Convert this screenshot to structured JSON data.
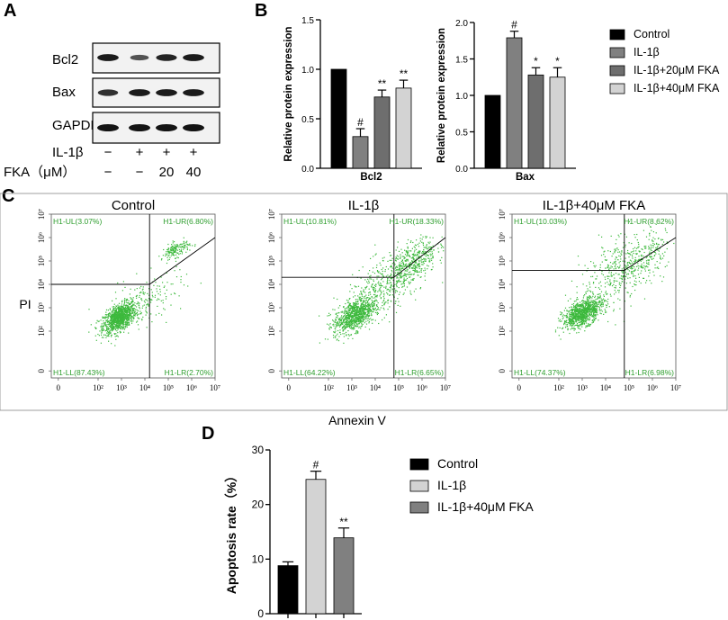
{
  "panels": {
    "a": "A",
    "b": "B",
    "c": "C",
    "d": "D"
  },
  "western_blot": {
    "bands": [
      "Bcl2",
      "Bax",
      "GAPDH"
    ],
    "row_labels": [
      "IL-1β",
      "FKA（μM）"
    ],
    "il1b_row": [
      "−",
      "+",
      "+",
      "+"
    ],
    "fka_row": [
      "−",
      "−",
      "20",
      "40"
    ],
    "band_intensity": {
      "Bcl2": [
        0.95,
        0.45,
        0.85,
        0.95
      ],
      "Bax": [
        0.75,
        0.95,
        0.95,
        0.95
      ],
      "GAPDH": [
        1.0,
        1.0,
        1.0,
        1.0
      ]
    }
  },
  "legend_b": {
    "items": [
      "Control",
      "IL-1β",
      "IL-1β+20μM FKA",
      "IL-1β+40μM FKA"
    ],
    "colors": [
      "#000000",
      "#808080",
      "#6e6e6e",
      "#d3d3d3"
    ]
  },
  "legend_d": {
    "items": [
      "Control",
      "IL-1β",
      "IL-1β+40μM FKA"
    ],
    "colors": [
      "#000000",
      "#d3d3d3",
      "#808080"
    ]
  },
  "chart_data": [
    {
      "id": "bcl2",
      "type": "bar",
      "categories": [
        "Control",
        "IL-1β",
        "IL-1β+20μM FKA",
        "IL-1β+40μM FKA"
      ],
      "values": [
        1.0,
        0.32,
        0.72,
        0.81
      ],
      "errors": [
        0,
        0.08,
        0.07,
        0.08
      ],
      "significance": [
        "",
        "#",
        "**",
        "**"
      ],
      "colors": [
        "#000000",
        "#808080",
        "#6e6e6e",
        "#d3d3d3"
      ],
      "title": "",
      "xlabel": "Bcl2",
      "ylabel": "Relative protein expression",
      "ylim": [
        0,
        1.5
      ],
      "yticks": [
        "0.0",
        "0.5",
        "1.0",
        "1.5"
      ]
    },
    {
      "id": "bax",
      "type": "bar",
      "categories": [
        "Control",
        "IL-1β",
        "IL-1β+20μM FKA",
        "IL-1β+40μM FKA"
      ],
      "values": [
        1.0,
        1.79,
        1.28,
        1.25
      ],
      "errors": [
        0,
        0.09,
        0.1,
        0.13
      ],
      "significance": [
        "",
        "#",
        "*",
        "*"
      ],
      "colors": [
        "#000000",
        "#808080",
        "#6e6e6e",
        "#d3d3d3"
      ],
      "title": "",
      "xlabel": "Bax",
      "ylabel": "Relative protein expression",
      "ylim": [
        0,
        2.0
      ],
      "yticks": [
        "0.0",
        "0.5",
        "1.0",
        "1.5",
        "2.0"
      ]
    },
    {
      "id": "flow",
      "type": "scatter",
      "xlabel": "Annexin V",
      "ylabel": "PI",
      "xlim": [
        0,
        7
      ],
      "ylim": [
        0,
        7
      ],
      "samples": [
        {
          "title": "Control",
          "UL": "H1-UL(3.07%)",
          "UR": "H1-UR(6.80%)",
          "LL": "H1-LL(87.43%)",
          "LR": "H1-LR(2.70%)",
          "gate_x": 4.2,
          "gate_y": 4.0
        },
        {
          "title": "IL-1β",
          "UL": "H1-UL(10.81%)",
          "UR": "H1-UR(18.33%)",
          "LL": "H1-LL(64.22%)",
          "LR": "H1-LR(6.65%)",
          "gate_x": 4.8,
          "gate_y": 4.3
        },
        {
          "title": "IL-1β+40μM FKA",
          "UL": "H1-UL(10.03%)",
          "UR": "H1-UR(8.62%)",
          "LL": "H1-LL(74.37%)",
          "LR": "H1-LR(6.98%)",
          "gate_x": 4.8,
          "gate_y": 4.6
        }
      ]
    },
    {
      "id": "apoptosis",
      "type": "bar",
      "categories": [
        "Control",
        "IL-1β",
        "IL-1β+40μM FKA"
      ],
      "values": [
        8.8,
        24.6,
        13.9
      ],
      "errors": [
        0.7,
        1.5,
        1.8
      ],
      "significance": [
        "",
        "#",
        "**"
      ],
      "colors": [
        "#000000",
        "#d3d3d3",
        "#808080"
      ],
      "title": "",
      "xlabel": "",
      "ylabel": "Apoptosis rate（%）",
      "ylim": [
        0,
        30
      ],
      "yticks": [
        "0",
        "10",
        "20",
        "30"
      ]
    }
  ]
}
